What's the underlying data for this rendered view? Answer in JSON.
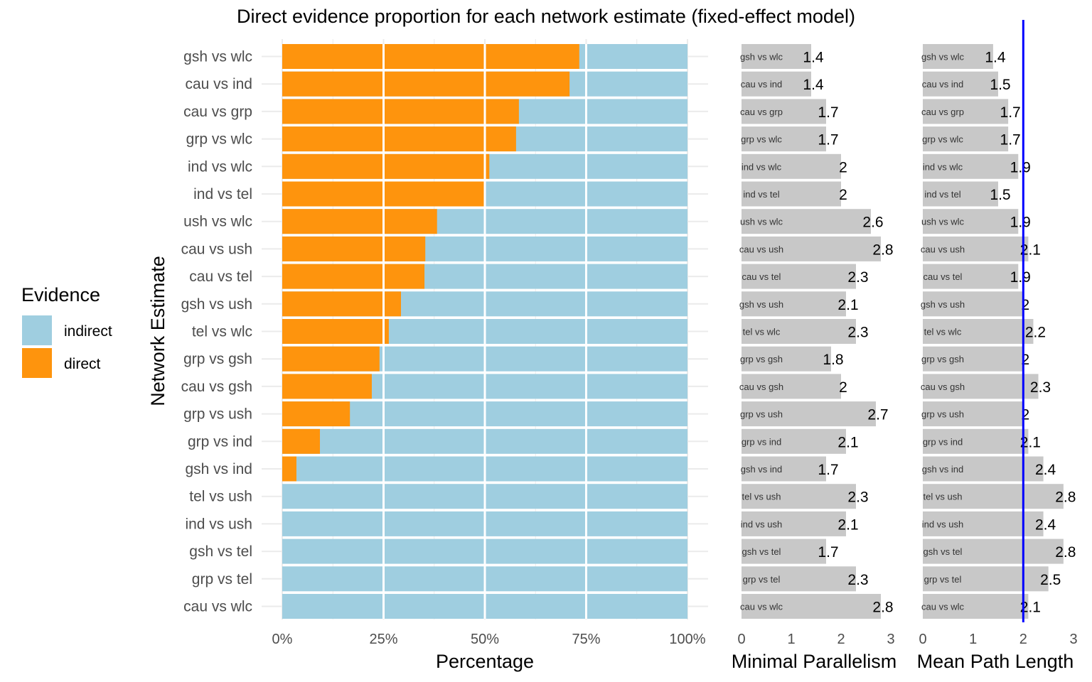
{
  "chart_data": [
    {
      "type": "bar",
      "orientation": "horizontal",
      "stacked": true,
      "title": "Direct evidence proportion for each network estimate (fixed-effect model)",
      "xlabel": "Percentage",
      "ylabel": "Network Estimate",
      "xlim": [
        0,
        100
      ],
      "x_ticks": [
        "0%",
        "25%",
        "50%",
        "75%",
        "100%"
      ],
      "grid": true,
      "legend": {
        "title": "Evidence",
        "position": "left",
        "entries": [
          {
            "label": "indirect",
            "color": "#9FCEE0"
          },
          {
            "label": "direct",
            "color": "#FE940D"
          }
        ]
      },
      "categories": [
        "gsh vs wlc",
        "cau vs ind",
        "cau vs grp",
        "grp vs wlc",
        "ind vs wlc",
        "ind vs tel",
        "ush vs wlc",
        "cau vs ush",
        "cau vs tel",
        "gsh vs ush",
        "tel vs wlc",
        "grp vs gsh",
        "cau vs gsh",
        "grp vs ush",
        "grp vs ind",
        "gsh vs ind",
        "tel vs ush",
        "ind vs ush",
        "gsh vs tel",
        "grp vs tel",
        "cau vs wlc"
      ],
      "series": [
        {
          "name": "direct",
          "values": [
            73.3,
            70.9,
            58.4,
            57.7,
            51.1,
            50.0,
            38.2,
            35.3,
            35.1,
            29.3,
            26.3,
            24.0,
            22.1,
            16.7,
            9.3,
            3.5,
            0,
            0,
            0,
            0,
            0
          ]
        },
        {
          "name": "indirect",
          "values": [
            26.7,
            29.1,
            41.6,
            42.3,
            48.9,
            50.0,
            61.8,
            64.7,
            64.9,
            70.7,
            73.7,
            76.0,
            77.9,
            83.3,
            90.7,
            96.5,
            100,
            100,
            100,
            100,
            100
          ]
        }
      ]
    },
    {
      "type": "bar",
      "orientation": "horizontal",
      "xlabel": "Minimal Parallelism",
      "xlim": [
        0,
        3
      ],
      "x_ticks": [
        "0",
        "1",
        "2",
        "3"
      ],
      "bar_color": "#C8C8C8",
      "categories": [
        "gsh vs wlc",
        "cau vs ind",
        "cau vs grp",
        "grp vs wlc",
        "ind vs wlc",
        "ind vs tel",
        "ush vs wlc",
        "cau vs ush",
        "cau vs tel",
        "gsh vs ush",
        "tel vs wlc",
        "grp vs gsh",
        "cau vs gsh",
        "grp vs ush",
        "grp vs ind",
        "gsh vs ind",
        "tel vs ush",
        "ind vs ush",
        "gsh vs tel",
        "grp vs tel",
        "cau vs wlc"
      ],
      "values": [
        1.4,
        1.4,
        1.7,
        1.7,
        2,
        2,
        2.6,
        2.8,
        2.3,
        2.1,
        2.3,
        1.8,
        2,
        2.7,
        2.1,
        1.7,
        2.3,
        2.1,
        1.7,
        2.3,
        2.8
      ],
      "value_labels": [
        "1.4",
        "1.4",
        "1.7",
        "1.7",
        "2",
        "2",
        "2.6",
        "2.8",
        "2.3",
        "2.1",
        "2.3",
        "1.8",
        "2",
        "2.7",
        "2.1",
        "1.7",
        "2.3",
        "2.1",
        "1.7",
        "2.3",
        "2.8"
      ]
    },
    {
      "type": "bar",
      "orientation": "horizontal",
      "xlabel": "Mean Path Length",
      "xlim": [
        0,
        3
      ],
      "x_ticks": [
        "0",
        "1",
        "2",
        "3"
      ],
      "bar_color": "#C8C8C8",
      "reference_line": {
        "x": 2,
        "color": "#0000FF"
      },
      "categories": [
        "gsh vs wlc",
        "cau vs ind",
        "cau vs grp",
        "grp vs wlc",
        "ind vs wlc",
        "ind vs tel",
        "ush vs wlc",
        "cau vs ush",
        "cau vs tel",
        "gsh vs ush",
        "tel vs wlc",
        "grp vs gsh",
        "cau vs gsh",
        "grp vs ush",
        "grp vs ind",
        "gsh vs ind",
        "tel vs ush",
        "ind vs ush",
        "gsh vs tel",
        "grp vs tel",
        "cau vs wlc"
      ],
      "values": [
        1.4,
        1.5,
        1.7,
        1.7,
        1.9,
        1.5,
        1.9,
        2.1,
        1.9,
        2,
        2.2,
        2,
        2.3,
        2,
        2.1,
        2.4,
        2.8,
        2.4,
        2.8,
        2.5,
        2.1
      ],
      "value_labels": [
        "1.4",
        "1.5",
        "1.7",
        "1.7",
        "1.9",
        "1.5",
        "1.9",
        "2.1",
        "1.9",
        "2",
        "2.2",
        "2",
        "2.3",
        "2",
        "2.1",
        "2.4",
        "2.8",
        "2.4",
        "2.8",
        "2.5",
        "2.1"
      ]
    }
  ]
}
